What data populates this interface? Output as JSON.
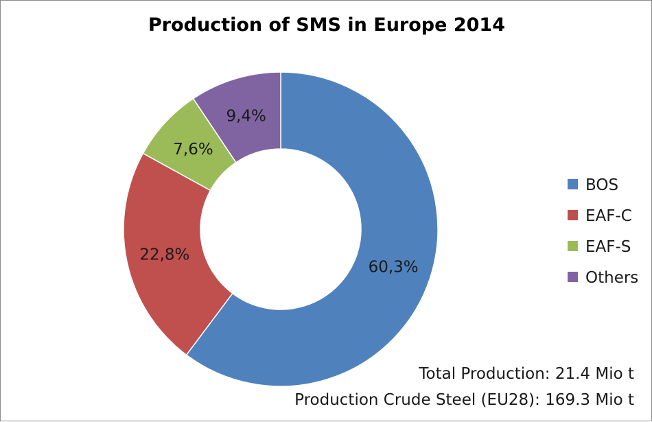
{
  "chart_data": {
    "type": "pie",
    "variant": "doughnut",
    "title": "Production of SMS in Europe 2014",
    "categories": [
      "BOS",
      "EAF-C",
      "EAF-S",
      "Others"
    ],
    "values": [
      60.3,
      22.8,
      7.6,
      9.4
    ],
    "data_labels": [
      "60,3%",
      "22,8%",
      "7,6%",
      "9,4%"
    ],
    "colors": [
      "#4f81bd",
      "#c0504d",
      "#9bbb59",
      "#8064a2"
    ],
    "legend_position": "right",
    "notes": [
      "Total Production: 21.4 Mio t",
      "Production Crude Steel (EU28): 169.3 Mio t"
    ]
  }
}
